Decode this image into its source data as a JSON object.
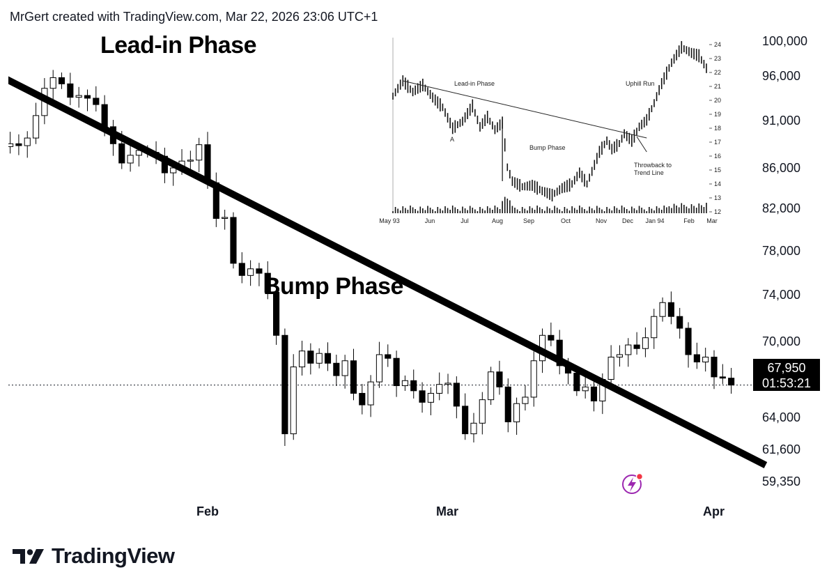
{
  "header": {
    "attribution": "MrGert created with TradingView.com, Mar 22, 2026 23:06 UTC+1"
  },
  "annotations": {
    "lead_in": "Lead-in Phase",
    "bump": "Bump Phase"
  },
  "price_tag": {
    "price": "67,950",
    "countdown": "01:53:21"
  },
  "brand": {
    "name": "TradingView"
  },
  "icons": {
    "brand_logo": "tradingview-logo-icon",
    "alert": "lightning-bolt-icon"
  },
  "colors": {
    "candle": "#000000",
    "trend_line": "#000000",
    "price_tag_bg": "#000000",
    "bolt": "#9c27b0",
    "bolt_dot": "#f23645"
  },
  "chart_data": [
    {
      "type": "candlestick",
      "title": "",
      "y_scale": "log",
      "y_ticks": [
        "100,000",
        "96,000",
        "91,000",
        "86,000",
        "82,000",
        "78,000",
        "74,000",
        "70,000",
        "64,000",
        "61,600",
        "59,350"
      ],
      "y_tick_values": [
        100000,
        96000,
        91000,
        86000,
        82000,
        78000,
        74000,
        70000,
        64000,
        61600,
        59350
      ],
      "ylim": [
        57800,
        103000
      ],
      "x_ticks": [
        "Feb",
        "Mar",
        "Apr"
      ],
      "x_tick_values": [
        "2026-02-01",
        "2026-03-01",
        "2026-04-01"
      ],
      "xlim": [
        "2026-01-05",
        "2026-04-09"
      ],
      "last_price": 67950,
      "grid": false,
      "legend": "none",
      "trend_line": {
        "from": {
          "date": "2026-01-07",
          "price": 97800
        },
        "to": {
          "date": "2026-04-07",
          "price": 61900
        }
      },
      "close_series": [
        89500,
        89800,
        89600,
        89700,
        90000,
        89800,
        90600,
        93000,
        96000,
        97200,
        96500,
        95000,
        95200,
        94900,
        94200,
        91800,
        90000,
        88000,
        88800,
        89300,
        89100,
        88700,
        87000,
        87500,
        88200,
        88300,
        89900,
        86000,
        82500,
        82600,
        78300,
        77200,
        77800,
        77400,
        75700,
        72000,
        64200,
        69400,
        70700,
        69700,
        70500,
        69700,
        68700,
        69900,
        67300,
        66400,
        68200,
        70400,
        70100,
        67900,
        68300,
        67500,
        66600,
        67300,
        68000,
        68100,
        66300,
        64200,
        65000,
        66800,
        69000,
        67800,
        65100,
        66500,
        67000,
        69900,
        72000,
        71600,
        69500,
        68900,
        67500,
        67800,
        66700,
        68400,
        70200,
        70400,
        71200,
        70900,
        71800,
        73600,
        74800,
        73600,
        72600,
        70400,
        69800,
        70200,
        68600,
        68500,
        67950
      ]
    },
    {
      "type": "candlestick",
      "title": "",
      "y_ticks": [
        "24",
        "23",
        "22",
        "21",
        "20",
        "19",
        "18",
        "17",
        "16",
        "15",
        "14",
        "13",
        "12"
      ],
      "ylim": [
        12,
        24.5
      ],
      "x_ticks": [
        "May 93",
        "Jun",
        "Jul",
        "Aug",
        "Sep",
        "Oct",
        "Nov",
        "Dec",
        "Jan 94",
        "Feb",
        "Mar"
      ],
      "trend_line_label": "",
      "annotations": [
        "Lead-in Phase",
        "Uphill Run",
        "A",
        "Bump Phase",
        "Throwback to",
        "Trend Line"
      ],
      "volume": true
    }
  ]
}
